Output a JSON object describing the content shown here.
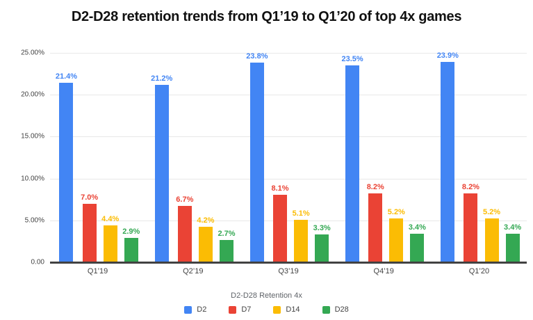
{
  "page": {
    "background": "#ffffff"
  },
  "chart_data": {
    "type": "bar",
    "title": "D2-D28 retention trends from Q1’19 to Q1’20 of top 4x games",
    "categories": [
      "Q1’19",
      "Q2’19",
      "Q3’19",
      "Q4’19",
      "Q1’20"
    ],
    "series": [
      {
        "name": "D2",
        "color": "#4285F4",
        "values": [
          21.4,
          21.2,
          23.8,
          23.5,
          23.9
        ],
        "labels": [
          "21.4%",
          "21.2%",
          "23.8%",
          "23.5%",
          "23.9%"
        ]
      },
      {
        "name": "D7",
        "color": "#EA4335",
        "values": [
          7.0,
          6.7,
          8.1,
          8.2,
          8.2
        ],
        "labels": [
          "7.0%",
          "6.7%",
          "8.1%",
          "8.2%",
          "8.2%"
        ]
      },
      {
        "name": "D14",
        "color": "#FBBC04",
        "values": [
          4.4,
          4.2,
          5.1,
          5.2,
          5.2
        ],
        "labels": [
          "4.4%",
          "4.2%",
          "5.1%",
          "5.2%",
          "5.2%"
        ]
      },
      {
        "name": "D28",
        "color": "#34A853",
        "values": [
          2.9,
          2.7,
          3.3,
          3.4,
          3.4
        ],
        "labels": [
          "2.9%",
          "2.7%",
          "3.3%",
          "3.4%",
          "3.4%"
        ]
      }
    ],
    "xlabel": "D2-D28 Retention 4x",
    "ylabel": "",
    "ylim": [
      0,
      25
    ],
    "yticks": [
      {
        "value": 25,
        "label": "25.00%"
      },
      {
        "value": 20,
        "label": "20.00%"
      },
      {
        "value": 15,
        "label": "15.00%"
      },
      {
        "value": 10,
        "label": "10.00%"
      },
      {
        "value": 5,
        "label": "5.00%"
      },
      {
        "value": 0,
        "label": "0.00"
      }
    ],
    "grid": true,
    "legend_position": "bottom",
    "colors": {
      "gridline": "#e8e8e8",
      "baseline": "#424242",
      "tick_label": "#424242",
      "category_label": "#424242",
      "axis_title": "#5f6368",
      "title": "#111111"
    }
  }
}
